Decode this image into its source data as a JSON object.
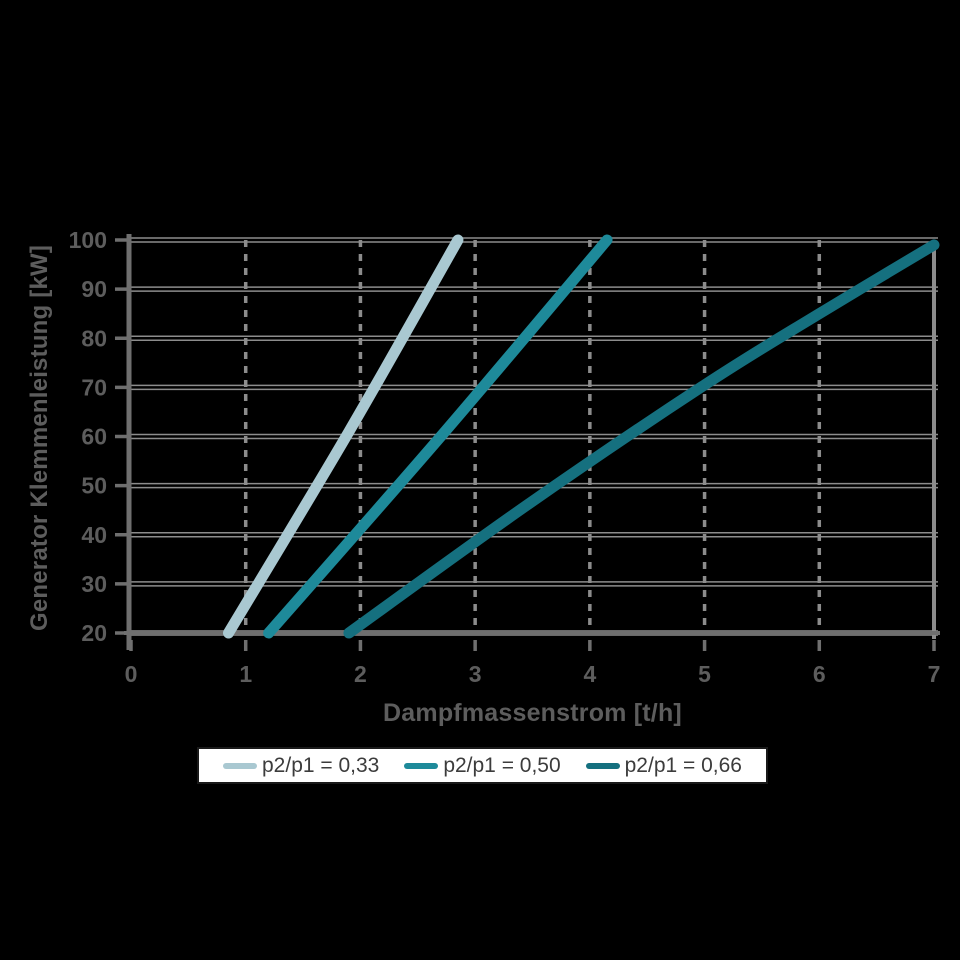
{
  "page": {
    "background": "#000000"
  },
  "chart_data": {
    "type": "line",
    "title": "",
    "xlabel": "Dampfmassenstrom [t/h]",
    "ylabel": "Generator Klemmenleistung [kW]",
    "xlim": [
      0,
      7
    ],
    "ylim": [
      20,
      100
    ],
    "x_ticks": [
      0,
      1,
      2,
      3,
      4,
      5,
      6,
      7
    ],
    "y_ticks": [
      20,
      30,
      40,
      50,
      60,
      70,
      80,
      90,
      100
    ],
    "grid": {
      "horizontal": "solid",
      "vertical": "dashed",
      "color": "#8c8c8c"
    },
    "axis_color": "#6f6f6f",
    "tick_label_color": "#5d5d5d",
    "axis_title_color": "#5d5d5d",
    "line_width": 11,
    "legend_position": "bottom",
    "legend": {
      "background": "#ffffff",
      "border_color": "#1a1a1a",
      "text_color": "#3c3c3c"
    },
    "series": [
      {
        "name": "p2/p1 = 0,33",
        "color": "#a9c8d1",
        "points": [
          [
            0.85,
            20
          ],
          [
            1.9,
            61
          ],
          [
            2.85,
            100
          ]
        ]
      },
      {
        "name": "p2/p1 = 0,50",
        "color": "#1e8a9a",
        "points": [
          [
            1.2,
            20
          ],
          [
            2.7,
            60
          ],
          [
            4.15,
            100
          ]
        ]
      },
      {
        "name": "p2/p1 = 0,66",
        "color": "#15707f",
        "points": [
          [
            1.9,
            20
          ],
          [
            3.45,
            46
          ],
          [
            5.0,
            70.5
          ],
          [
            6.0,
            85
          ],
          [
            7.0,
            99
          ]
        ]
      }
    ]
  }
}
